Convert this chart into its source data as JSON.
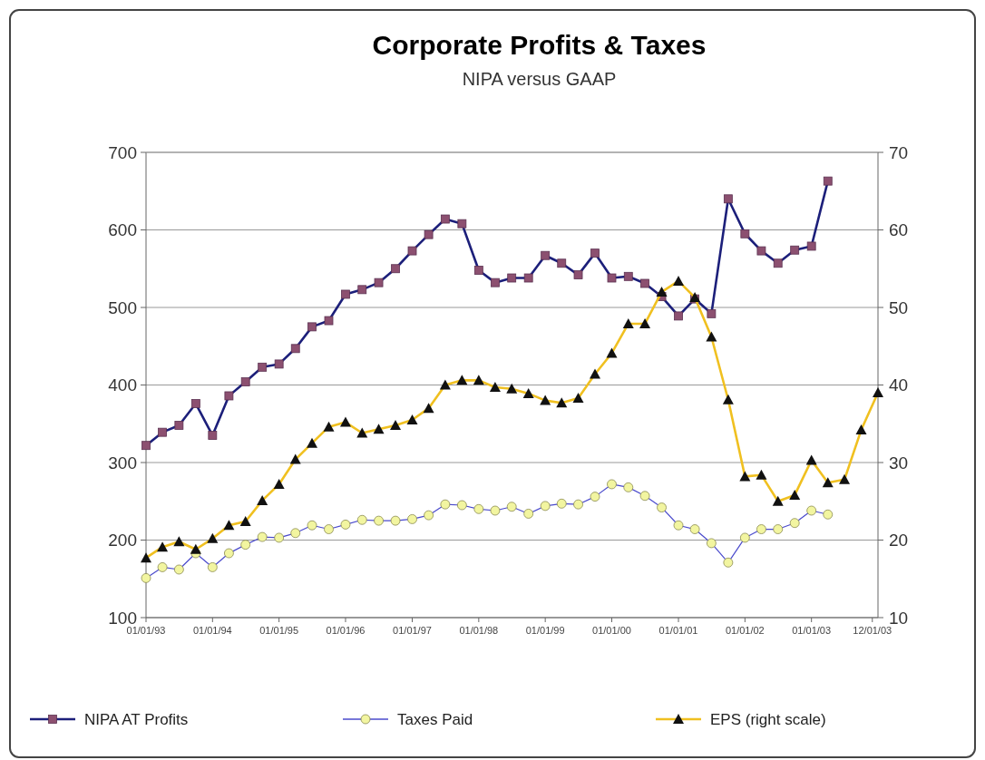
{
  "chart_data": {
    "type": "line",
    "title": "Corporate Profits & Taxes",
    "subtitle": "NIPA versus GAAP",
    "x": [
      "1993-01",
      "1993-04",
      "1993-07",
      "1993-10",
      "1994-01",
      "1994-04",
      "1994-07",
      "1994-10",
      "1995-01",
      "1995-04",
      "1995-07",
      "1995-10",
      "1996-01",
      "1996-04",
      "1996-07",
      "1996-10",
      "1997-01",
      "1997-04",
      "1997-07",
      "1997-10",
      "1998-01",
      "1998-04",
      "1998-07",
      "1998-10",
      "1999-01",
      "1999-04",
      "1999-07",
      "1999-10",
      "2000-01",
      "2000-04",
      "2000-07",
      "2000-10",
      "2001-01",
      "2001-04",
      "2001-07",
      "2001-10",
      "2002-01",
      "2002-04",
      "2002-07",
      "2002-10",
      "2003-01",
      "2003-04",
      "2003-07",
      "2003-10",
      "2004-01"
    ],
    "xlim": [
      "1993-01",
      "2004-01"
    ],
    "xticks": [
      {
        "value": "1993-01-01",
        "label": "01/01/93"
      },
      {
        "value": "1994-01-01",
        "label": "01/01/94"
      },
      {
        "value": "1995-01-01",
        "label": "01/01/95"
      },
      {
        "value": "1996-01-01",
        "label": "01/01/96"
      },
      {
        "value": "1997-01-01",
        "label": "01/01/97"
      },
      {
        "value": "1998-01-01",
        "label": "01/01/98"
      },
      {
        "value": "1999-01-01",
        "label": "01/01/99"
      },
      {
        "value": "2000-01-01",
        "label": "01/01/00"
      },
      {
        "value": "2001-01-01",
        "label": "01/01/01"
      },
      {
        "value": "2002-01-01",
        "label": "01/01/02"
      },
      {
        "value": "2003-01-01",
        "label": "01/01/03"
      },
      {
        "value": "2003-12-01",
        "label": "12/01/03"
      }
    ],
    "ylim": [
      100,
      700
    ],
    "yticks": [
      100,
      200,
      300,
      400,
      500,
      600,
      700
    ],
    "y2lim": [
      10,
      70
    ],
    "y2ticks": [
      10,
      20,
      30,
      40,
      50,
      60,
      70
    ],
    "grid": "y",
    "legend": "bottom",
    "series": [
      {
        "name": "NIPA AT Profits",
        "color": "#1c1f7a",
        "marker": "square",
        "values": [
          322,
          339,
          348,
          376,
          335,
          386,
          404,
          423,
          427,
          447,
          475,
          483,
          517,
          523,
          532,
          550,
          573,
          594,
          614,
          608,
          548,
          532,
          538,
          538,
          567,
          557,
          542,
          570,
          538,
          540,
          531,
          514,
          489,
          511,
          492,
          640,
          595,
          573,
          557,
          574,
          579,
          663,
          null,
          null,
          null
        ]
      },
      {
        "name": "Taxes Paid",
        "color": "#4a4acc",
        "marker": "circle",
        "values": [
          151,
          165,
          162,
          183,
          165,
          183,
          194,
          204,
          203,
          209,
          219,
          214,
          220,
          226,
          225,
          225,
          227,
          232,
          246,
          245,
          240,
          238,
          243,
          234,
          244,
          247,
          246,
          256,
          272,
          268,
          257,
          242,
          219,
          214,
          196,
          171,
          203,
          214,
          214,
          222,
          238,
          233,
          null,
          null,
          null
        ]
      },
      {
        "name": "EPS (right scale)",
        "color": "#f0c020",
        "marker": "triangle",
        "axis": "y2",
        "values": [
          17.7,
          19.1,
          19.8,
          18.8,
          20.2,
          21.9,
          22.4,
          25.1,
          27.2,
          30.4,
          32.5,
          34.6,
          35.2,
          33.8,
          34.3,
          34.8,
          35.5,
          37.0,
          40.0,
          40.6,
          40.6,
          39.7,
          39.5,
          38.9,
          38.0,
          37.7,
          38.3,
          41.4,
          44.1,
          47.9,
          47.9,
          52.0,
          53.4,
          51.3,
          46.2,
          38.1,
          28.2,
          28.4,
          25.0,
          25.8,
          30.3,
          27.4,
          27.8,
          34.2,
          39.0
        ]
      }
    ]
  }
}
